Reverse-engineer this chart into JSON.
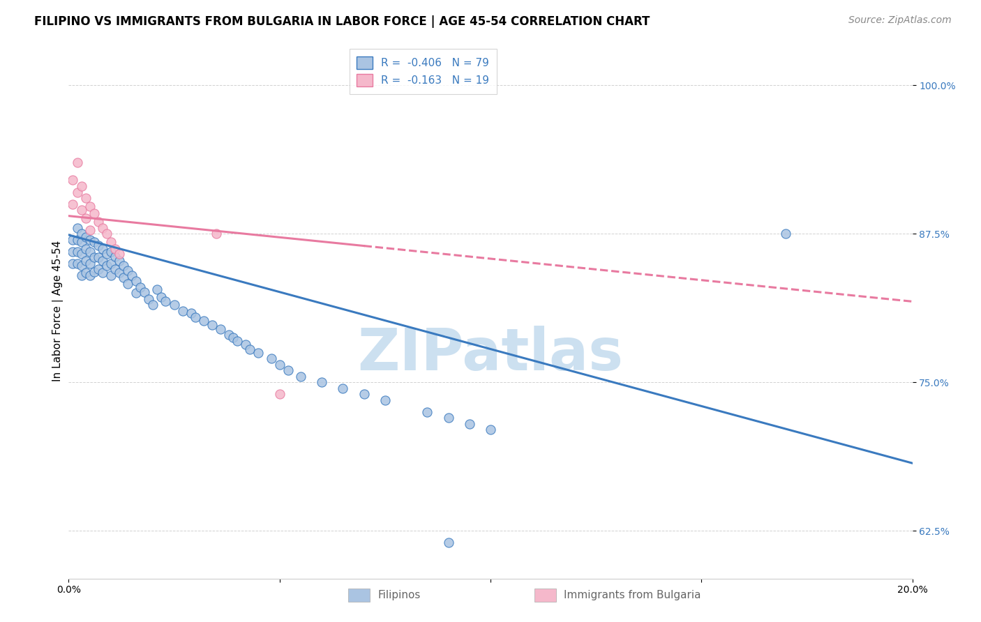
{
  "title": "FILIPINO VS IMMIGRANTS FROM BULGARIA IN LABOR FORCE | AGE 45-54 CORRELATION CHART",
  "source": "Source: ZipAtlas.com",
  "ylabel": "In Labor Force | Age 45-54",
  "x_min": 0.0,
  "x_max": 0.2,
  "y_min": 0.585,
  "y_max": 1.035,
  "y_ticks": [
    0.625,
    0.75,
    0.875,
    1.0
  ],
  "y_tick_labels": [
    "62.5%",
    "75.0%",
    "87.5%",
    "100.0%"
  ],
  "x_ticks": [
    0.0,
    0.05,
    0.1,
    0.15,
    0.2
  ],
  "x_tick_labels": [
    "0.0%",
    "",
    "",
    "",
    "20.0%"
  ],
  "legend_labels": [
    "Filipinos",
    "Immigrants from Bulgaria"
  ],
  "R_filipino": -0.406,
  "N_filipino": 79,
  "R_bulgaria": -0.163,
  "N_bulgaria": 19,
  "trendline_filipino_x0": 0.0,
  "trendline_filipino_y0": 0.874,
  "trendline_filipino_x1": 0.2,
  "trendline_filipino_y1": 0.682,
  "trendline_bulgaria_x0": 0.0,
  "trendline_bulgaria_y0": 0.89,
  "trendline_bulgaria_x1": 0.2,
  "trendline_bulgaria_y1": 0.818,
  "scatter_filipino_x": [
    0.001,
    0.001,
    0.001,
    0.002,
    0.002,
    0.002,
    0.002,
    0.003,
    0.003,
    0.003,
    0.003,
    0.003,
    0.004,
    0.004,
    0.004,
    0.004,
    0.005,
    0.005,
    0.005,
    0.005,
    0.006,
    0.006,
    0.006,
    0.007,
    0.007,
    0.007,
    0.008,
    0.008,
    0.008,
    0.009,
    0.009,
    0.01,
    0.01,
    0.01,
    0.011,
    0.011,
    0.012,
    0.012,
    0.013,
    0.013,
    0.014,
    0.014,
    0.015,
    0.016,
    0.016,
    0.017,
    0.018,
    0.019,
    0.02,
    0.021,
    0.022,
    0.023,
    0.025,
    0.027,
    0.029,
    0.03,
    0.032,
    0.034,
    0.036,
    0.038,
    0.039,
    0.04,
    0.042,
    0.043,
    0.045,
    0.048,
    0.05,
    0.052,
    0.055,
    0.06,
    0.065,
    0.07,
    0.075,
    0.085,
    0.09,
    0.095,
    0.17,
    0.09,
    0.1
  ],
  "scatter_filipino_y": [
    0.87,
    0.86,
    0.85,
    0.88,
    0.87,
    0.86,
    0.85,
    0.875,
    0.868,
    0.858,
    0.848,
    0.84,
    0.872,
    0.862,
    0.852,
    0.842,
    0.87,
    0.86,
    0.85,
    0.84,
    0.868,
    0.855,
    0.843,
    0.865,
    0.855,
    0.845,
    0.862,
    0.852,
    0.842,
    0.858,
    0.848,
    0.86,
    0.85,
    0.84,
    0.856,
    0.845,
    0.852,
    0.842,
    0.848,
    0.838,
    0.844,
    0.833,
    0.84,
    0.835,
    0.825,
    0.83,
    0.826,
    0.82,
    0.815,
    0.828,
    0.822,
    0.818,
    0.815,
    0.81,
    0.808,
    0.805,
    0.802,
    0.798,
    0.795,
    0.79,
    0.788,
    0.785,
    0.782,
    0.778,
    0.775,
    0.77,
    0.765,
    0.76,
    0.755,
    0.75,
    0.745,
    0.74,
    0.735,
    0.725,
    0.72,
    0.715,
    0.875,
    0.615,
    0.71
  ],
  "scatter_bulgaria_x": [
    0.001,
    0.001,
    0.002,
    0.002,
    0.003,
    0.003,
    0.004,
    0.004,
    0.005,
    0.005,
    0.006,
    0.007,
    0.008,
    0.009,
    0.01,
    0.011,
    0.012,
    0.035,
    0.05
  ],
  "scatter_bulgaria_y": [
    0.92,
    0.9,
    0.935,
    0.91,
    0.915,
    0.895,
    0.905,
    0.888,
    0.898,
    0.878,
    0.892,
    0.885,
    0.88,
    0.875,
    0.868,
    0.862,
    0.858,
    0.875,
    0.74
  ],
  "color_filipino": "#aac4e2",
  "color_bulgaria": "#f5b8cb",
  "trendline_filipino_color": "#3a7abf",
  "trendline_bulgaria_color": "#e87aa0",
  "background_color": "#ffffff",
  "watermark_text": "ZIPatlas",
  "watermark_color": "#cce0f0",
  "title_fontsize": 12,
  "axis_label_fontsize": 11,
  "tick_fontsize": 10,
  "legend_fontsize": 11,
  "source_fontsize": 10
}
